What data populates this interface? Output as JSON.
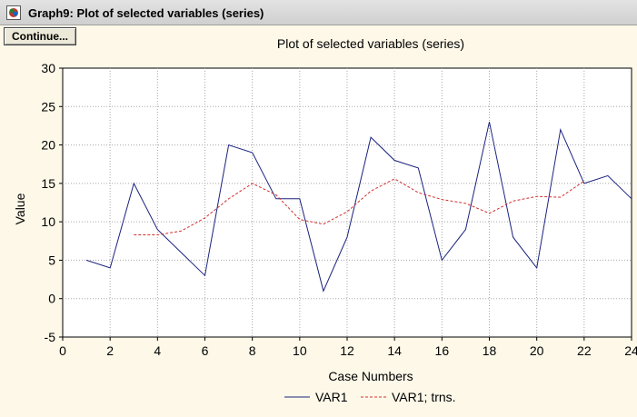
{
  "window": {
    "title": "Graph9: Plot of selected variables (series)",
    "icon": "graph-app-icon"
  },
  "toolbar": {
    "continue_label": "Continue..."
  },
  "chart_data": {
    "type": "line",
    "title": "Plot of selected variables (series)",
    "xlabel": "Case Numbers",
    "ylabel": "Value",
    "xlim": [
      0,
      24
    ],
    "ylim": [
      -5,
      30
    ],
    "x_ticks": [
      0,
      2,
      4,
      6,
      8,
      10,
      12,
      14,
      16,
      18,
      20,
      22,
      24
    ],
    "y_ticks": [
      -5,
      0,
      5,
      10,
      15,
      20,
      25,
      30
    ],
    "grid": true,
    "legend_position": "bottom",
    "series": [
      {
        "name": "VAR1",
        "style": "solid",
        "color": "#1a237e",
        "x": [
          1,
          2,
          3,
          4,
          5,
          6,
          7,
          8,
          9,
          10,
          11,
          12,
          13,
          14,
          15,
          16,
          17,
          18,
          19,
          20,
          21,
          22,
          23,
          24
        ],
        "values": [
          5,
          4,
          15,
          9,
          6,
          3,
          20,
          19,
          13,
          13,
          1,
          8,
          21,
          18,
          17,
          5,
          9,
          23,
          8,
          4,
          22,
          15,
          16,
          13
        ]
      },
      {
        "name": "VAR1; trns.",
        "style": "dashed",
        "color": "#d32f2f",
        "x": [
          3,
          4,
          5,
          6,
          7,
          8,
          9,
          10,
          11,
          12,
          13,
          14,
          15,
          16,
          17,
          18,
          19,
          20,
          21,
          22
        ],
        "values": [
          8.3,
          8.3,
          8.8,
          10.5,
          13,
          15,
          13.5,
          10.3,
          9.7,
          11.3,
          14,
          15.6,
          13.8,
          12.9,
          12.4,
          11.1,
          12.7,
          13.3,
          13.2,
          15.3
        ]
      }
    ]
  }
}
